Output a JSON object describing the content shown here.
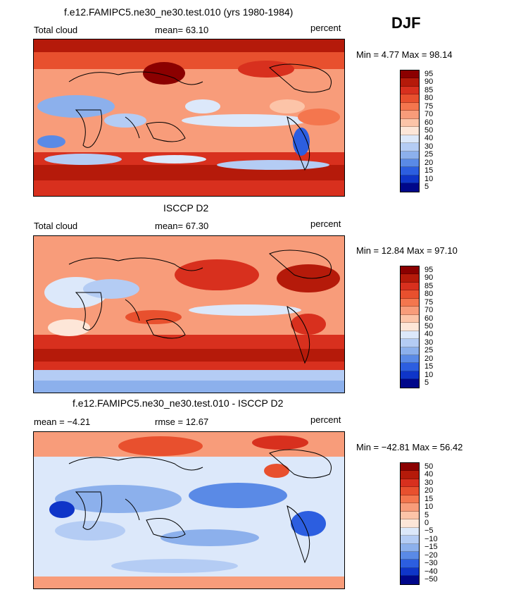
{
  "season": "DJF",
  "panels": [
    {
      "title": "f.e12.FAMIPC5.ne30_ne30.test.010 (yrs 1980-1984)",
      "left_label": "Total cloud",
      "center_label": "mean=  63.10",
      "right_label": "percent",
      "minmax": "Min =   4.77 Max =  98.14",
      "colorbar": {
        "labels": [
          "95",
          "90",
          "85",
          "80",
          "75",
          "70",
          "60",
          "50",
          "40",
          "30",
          "25",
          "20",
          "15",
          "10",
          "5"
        ],
        "colors": [
          "#8b0000",
          "#b51a0a",
          "#d8301e",
          "#e8502e",
          "#f4764e",
          "#f89c7a",
          "#fcc4a8",
          "#fde6d8",
          "#dce8fa",
          "#b4ccf4",
          "#8cb0ec",
          "#5a8ae6",
          "#2c5ee0",
          "#0f35c8",
          "#00078a"
        ]
      }
    },
    {
      "title": "ISCCP D2",
      "left_label": "Total cloud",
      "center_label": "mean=  67.30",
      "right_label": "percent",
      "minmax": "Min =  12.84 Max =  97.10",
      "colorbar": {
        "labels": [
          "95",
          "90",
          "85",
          "80",
          "75",
          "70",
          "60",
          "50",
          "40",
          "30",
          "25",
          "20",
          "15",
          "10",
          "5"
        ],
        "colors": [
          "#8b0000",
          "#b51a0a",
          "#d8301e",
          "#e8502e",
          "#f4764e",
          "#f89c7a",
          "#fcc4a8",
          "#fde6d8",
          "#dce8fa",
          "#b4ccf4",
          "#8cb0ec",
          "#5a8ae6",
          "#2c5ee0",
          "#0f35c8",
          "#00078a"
        ]
      }
    },
    {
      "title": "f.e12.FAMIPC5.ne30_ne30.test.010 - ISCCP D2",
      "left_label": "mean =   −4.21",
      "center_label": "rmse =   12.67",
      "right_label": "percent",
      "minmax": "Min = −42.81 Max =  56.42",
      "colorbar": {
        "labels": [
          "50",
          "40",
          "30",
          "20",
          "15",
          "10",
          "5",
          "0",
          "−5",
          "−10",
          "−15",
          "−20",
          "−30",
          "−40",
          "−50"
        ],
        "colors": [
          "#8b0000",
          "#b51a0a",
          "#d8301e",
          "#e8502e",
          "#f4764e",
          "#f89c7a",
          "#fcc4a8",
          "#fde6d8",
          "#dce8fa",
          "#b4ccf4",
          "#8cb0ec",
          "#5a8ae6",
          "#2c5ee0",
          "#0f35c8",
          "#00078a"
        ]
      }
    }
  ]
}
